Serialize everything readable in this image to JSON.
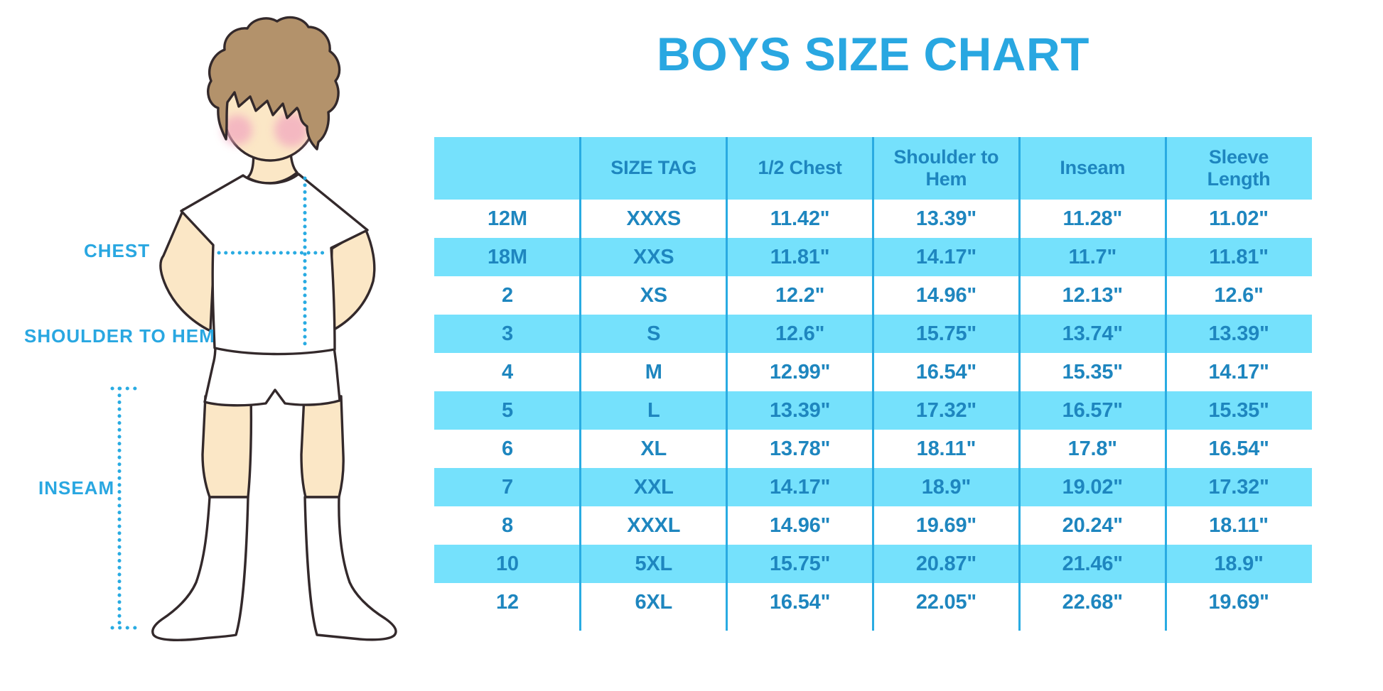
{
  "title": "BOYS SIZE CHART",
  "colors": {
    "accent": "#29ABE2",
    "row_fill": "#75E1FC",
    "table_text": "#1E86BF",
    "title_text": "#29A7E1",
    "hair": "#B3926B",
    "skin": "#FBE7C6",
    "cheek": "#F2A9C0",
    "outline": "#33292B"
  },
  "figure": {
    "labels": {
      "chest": "CHEST",
      "shoulder_to_hem": "SHOULDER TO HEM",
      "inseam": "INSEAM"
    }
  },
  "chart_data": {
    "type": "table",
    "title": "BOYS SIZE CHART",
    "columns": [
      "",
      "SIZE TAG",
      "1/2 Chest",
      "Shoulder to Hem",
      "Inseam",
      "Sleeve Length"
    ],
    "rows": [
      [
        "12M",
        "XXXS",
        "11.42\"",
        "13.39\"",
        "11.28\"",
        "11.02\""
      ],
      [
        "18M",
        "XXS",
        "11.81\"",
        "14.17\"",
        "11.7\"",
        "11.81\""
      ],
      [
        "2",
        "XS",
        "12.2\"",
        "14.96\"",
        "12.13\"",
        "12.6\""
      ],
      [
        "3",
        "S",
        "12.6\"",
        "15.75\"",
        "13.74\"",
        "13.39\""
      ],
      [
        "4",
        "M",
        "12.99\"",
        "16.54\"",
        "15.35\"",
        "14.17\""
      ],
      [
        "5",
        "L",
        "13.39\"",
        "17.32\"",
        "16.57\"",
        "15.35\""
      ],
      [
        "6",
        "XL",
        "13.78\"",
        "18.11\"",
        "17.8\"",
        "16.54\""
      ],
      [
        "7",
        "XXL",
        "14.17\"",
        "18.9\"",
        "19.02\"",
        "17.32\""
      ],
      [
        "8",
        "XXXL",
        "14.96\"",
        "19.69\"",
        "20.24\"",
        "18.11\""
      ],
      [
        "10",
        "5XL",
        "15.75\"",
        "20.87\"",
        "21.46\"",
        "18.9\""
      ],
      [
        "12",
        "6XL",
        "16.54\"",
        "22.05\"",
        "22.68\"",
        "19.69\""
      ]
    ],
    "layout": {
      "grid": "alternating row stripes (white / light blue), vertical column dividers only",
      "legend": "none"
    }
  }
}
